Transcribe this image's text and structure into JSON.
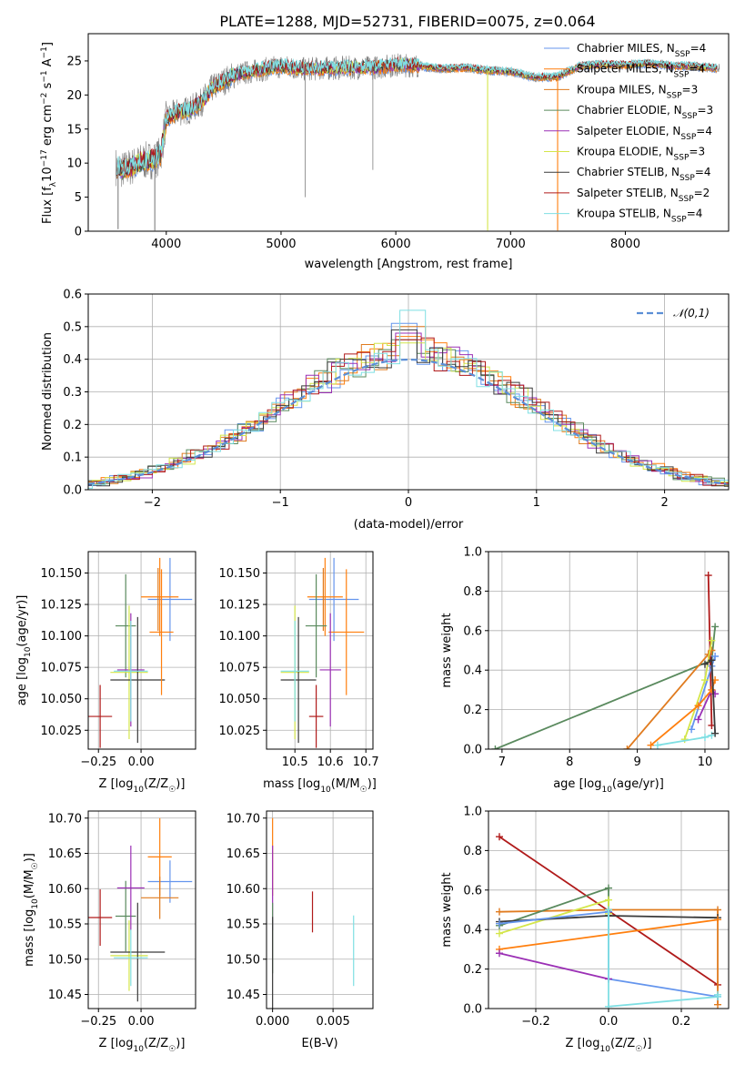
{
  "figure_title": "PLATE=1288, MJD=52731, FIBERID=0075, z=0.064",
  "colors": {
    "Chabrier MILES": "#6495ed",
    "Salpeter MILES": "#ff7f0e",
    "Kroupa MILES": "#e07b1f",
    "Chabrier ELODIE": "#5a8a5e",
    "Salpeter ELODIE": "#9b30b5",
    "Kroupa ELODIE": "#d4e64a",
    "Chabrier STELIB": "#3a3a3a",
    "Salpeter STELIB": "#b01a1a",
    "Kroupa STELIB": "#7fdfe3",
    "observed": "#7f7f7f",
    "normal": "#5b8ed6"
  },
  "chart_data": [
    {
      "id": "spectrum",
      "type": "line",
      "title": "PLATE=1288, MJD=52731, FIBERID=0075, z=0.064",
      "xlabel": "wavelength [Angstrom, rest frame]",
      "ylabel": "Flux [fλ10⁻¹⁷ erg cm⁻² s⁻¹ A⁻¹]",
      "xlim": [
        3320,
        8900
      ],
      "ylim": [
        0,
        29
      ],
      "xticks": [
        4000,
        5000,
        6000,
        7000,
        8000
      ],
      "yticks": [
        0,
        5,
        10,
        15,
        20,
        25
      ],
      "grid": false,
      "legend_position": "top-right",
      "legend": [
        "Chabrier MILES, N_SSP=4",
        "Salpeter MILES, N_SSP=4",
        "Kroupa MILES, N_SSP=3",
        "Chabrier ELODIE, N_SSP=3",
        "Salpeter ELODIE, N_SSP=4",
        "Kroupa ELODIE, N_SSP=3",
        "Chabrier STELIB, N_SSP=4",
        "Salpeter STELIB, N_SSP=2",
        "Kroupa STELIB, N_SSP=4"
      ],
      "continuum": {
        "x": [
          3560,
          3620,
          3700,
          3800,
          3900,
          3950,
          4000,
          4100,
          4200,
          4300,
          4400,
          4600,
          4800,
          5000,
          5200,
          5400,
          5600,
          5800,
          6000,
          6200,
          6400,
          6600,
          6800,
          7000,
          7200,
          7400,
          7600,
          7800,
          8000,
          8200,
          8400,
          8600,
          8800
        ],
        "y": [
          9.5,
          9.0,
          9.5,
          10.3,
          10.5,
          11.2,
          16.5,
          17.5,
          17.8,
          18.8,
          21.0,
          23.0,
          23.6,
          24.2,
          23.8,
          23.9,
          24.0,
          24.0,
          24.4,
          24.3,
          23.8,
          24.0,
          23.6,
          23.4,
          22.6,
          22.6,
          24.2,
          24.5,
          24.4,
          24.6,
          24.3,
          24.2,
          23.9
        ]
      },
      "dips": [
        {
          "x": 3580,
          "y": 0.3
        },
        {
          "x": 3900,
          "y": 0.1
        },
        {
          "x": 6800,
          "y": 0.1
        },
        {
          "x": 7410,
          "y": 0.1
        }
      ],
      "spikes": [
        {
          "x": 5210,
          "y": 5.0
        },
        {
          "x": 5800,
          "y": 9.0
        }
      ]
    },
    {
      "id": "residuals",
      "type": "histogram",
      "xlabel": "(data-model)/error",
      "ylabel": "Normed distribution",
      "xlim": [
        -2.5,
        2.5
      ],
      "ylim": [
        0,
        0.6
      ],
      "xticks": [
        -2,
        -1,
        0,
        1,
        2
      ],
      "yticks": [
        0.0,
        0.1,
        0.2,
        0.3,
        0.4,
        0.5,
        0.6
      ],
      "grid": true,
      "bin_width": 0.1,
      "legend_position": "top-right",
      "legend": [
        "𝒩(0,1)"
      ],
      "peak_values": [
        0.51,
        0.47,
        0.5,
        0.46,
        0.48,
        0.45,
        0.49,
        0.46,
        0.55
      ]
    },
    {
      "id": "age_vs_Z",
      "type": "scatter",
      "xlabel": "Z [log₁₀(Z/Z☉)]",
      "ylabel": "age  [log₁₀(age/yr)]",
      "xlim": [
        -0.31,
        0.32
      ],
      "ylim": [
        10.01,
        10.167
      ],
      "xticks": [
        -0.25,
        0.0
      ],
      "yticks": [
        10.025,
        10.05,
        10.075,
        10.1,
        10.125,
        10.15
      ],
      "grid": true,
      "points": [
        {
          "model": "Chabrier MILES",
          "x": 0.17,
          "y": 10.129,
          "xerr": 0.13,
          "yerr": 0.033
        },
        {
          "model": "Salpeter MILES",
          "x": 0.11,
          "y": 10.131,
          "xerr": 0.11,
          "yerr": 0.031
        },
        {
          "model": "Kroupa MILES",
          "x": 0.1,
          "y": 10.129,
          "xerr": 0.0,
          "yerr": 0.025
        },
        {
          "model": "Salpeter STELIB",
          "x": -0.24,
          "y": 10.036,
          "xerr": 0.07,
          "yerr": 0.025
        },
        {
          "model": "Chabrier ELODIE",
          "x": -0.09,
          "y": 10.108,
          "xerr": 0.06,
          "yerr": 0.041
        },
        {
          "model": "Salpeter ELODIE",
          "x": -0.06,
          "y": 10.073,
          "xerr": 0.08,
          "yerr": 0.045
        },
        {
          "model": "Kroupa ELODIE",
          "x": -0.07,
          "y": 10.071,
          "xerr": 0.11,
          "yerr": 0.053
        },
        {
          "model": "Chabrier STELIB",
          "x": -0.02,
          "y": 10.065,
          "xerr": 0.16,
          "yerr": 0.05
        },
        {
          "model": "Kroupa STELIB",
          "x": -0.06,
          "y": 10.072,
          "xerr": 0.1,
          "yerr": 0.04
        },
        {
          "model": "Salpeter MILES",
          "x": 0.12,
          "y": 10.103,
          "xerr": 0.07,
          "yerr": 0.05
        }
      ]
    },
    {
      "id": "age_vs_mass",
      "type": "scatter",
      "xlabel": "mass [log₁₀(M/M☉)]",
      "ylabel": "",
      "xlim": [
        10.42,
        10.72
      ],
      "ylim": [
        10.01,
        10.167
      ],
      "xticks": [
        10.5,
        10.6,
        10.7
      ],
      "yticks": [
        10.025,
        10.05,
        10.075,
        10.1,
        10.125,
        10.15
      ],
      "grid": true,
      "points": [
        {
          "model": "Chabrier MILES",
          "x": 10.61,
          "y": 10.129,
          "xerr": 0.07,
          "yerr": 0.033
        },
        {
          "model": "Salpeter MILES",
          "x": 10.585,
          "y": 10.131,
          "xerr": 0.05,
          "yerr": 0.031
        },
        {
          "model": "Salpeter MILES",
          "x": 10.645,
          "y": 10.103,
          "xerr": 0.05,
          "yerr": 0.05
        },
        {
          "model": "Kroupa MILES",
          "x": 10.58,
          "y": 10.129,
          "xerr": 0.0,
          "yerr": 0.025
        },
        {
          "model": "Salpeter STELIB",
          "x": 10.56,
          "y": 10.036,
          "xerr": 0.02,
          "yerr": 0.025
        },
        {
          "model": "Chabrier ELODIE",
          "x": 10.56,
          "y": 10.108,
          "xerr": 0.03,
          "yerr": 0.041
        },
        {
          "model": "Salpeter ELODIE",
          "x": 10.6,
          "y": 10.073,
          "xerr": 0.03,
          "yerr": 0.045
        },
        {
          "model": "Kroupa ELODIE",
          "x": 10.5,
          "y": 10.071,
          "xerr": 0.04,
          "yerr": 0.053
        },
        {
          "model": "Chabrier STELIB",
          "x": 10.51,
          "y": 10.065,
          "xerr": 0.05,
          "yerr": 0.05
        },
        {
          "model": "Kroupa STELIB",
          "x": 10.5,
          "y": 10.072,
          "xerr": 0.04,
          "yerr": 0.04
        }
      ]
    },
    {
      "id": "weight_vs_age",
      "type": "line",
      "xlabel": "age  [log₁₀(age/yr)]",
      "ylabel": "mass weight",
      "xlim": [
        6.8,
        10.35
      ],
      "ylim": [
        0,
        1
      ],
      "xticks": [
        7,
        8,
        9,
        10
      ],
      "yticks": [
        0.0,
        0.2,
        0.4,
        0.6,
        0.8,
        1.0
      ],
      "grid": true,
      "series": [
        {
          "model": "Chabrier ELODIE",
          "x": [
            6.9,
            10.1,
            10.15
          ],
          "y": [
            0.0,
            0.45,
            0.62
          ]
        },
        {
          "model": "Kroupa MILES",
          "x": [
            8.85,
            10.05,
            10.1
          ],
          "y": [
            0.0,
            0.48,
            0.5
          ]
        },
        {
          "model": "Salpeter STELIB",
          "x": [
            10.05,
            10.1
          ],
          "y": [
            0.88,
            0.12
          ]
        },
        {
          "model": "Chabrier MILES",
          "x": [
            9.8,
            10.1,
            10.15
          ],
          "y": [
            0.1,
            0.42,
            0.47
          ]
        },
        {
          "model": "Kroupa ELODIE",
          "x": [
            9.7,
            10.0,
            10.1
          ],
          "y": [
            0.05,
            0.35,
            0.55
          ]
        },
        {
          "model": "Salpeter ELODIE",
          "x": [
            9.9,
            10.1,
            10.15
          ],
          "y": [
            0.15,
            0.3,
            0.28
          ]
        },
        {
          "model": "Salpeter MILES",
          "x": [
            9.2,
            9.9,
            10.1,
            10.15
          ],
          "y": [
            0.02,
            0.22,
            0.3,
            0.35
          ]
        },
        {
          "model": "Kroupa STELIB",
          "x": [
            9.3,
            10.0,
            10.1
          ],
          "y": [
            0.02,
            0.06,
            0.07
          ]
        },
        {
          "model": "Chabrier STELIB",
          "x": [
            10.0,
            10.1,
            10.15
          ],
          "y": [
            0.43,
            0.45,
            0.08
          ]
        }
      ]
    },
    {
      "id": "mass_vs_Z",
      "type": "scatter",
      "xlabel": "Z [log₁₀(Z/Z☉)]",
      "ylabel": "mass [log₁₀(M/M☉)]",
      "xlim": [
        -0.31,
        0.32
      ],
      "ylim": [
        10.43,
        10.71
      ],
      "xticks": [
        -0.25,
        0.0
      ],
      "yticks": [
        10.45,
        10.5,
        10.55,
        10.6,
        10.65,
        10.7
      ],
      "grid": true,
      "points": [
        {
          "model": "Chabrier MILES",
          "x": 0.17,
          "y": 10.61,
          "xerr": 0.13,
          "yerr": 0.03
        },
        {
          "model": "Salpeter MILES",
          "x": 0.11,
          "y": 10.645,
          "xerr": 0.07,
          "yerr": 0.055
        },
        {
          "model": "Kroupa MILES",
          "x": 0.11,
          "y": 10.587,
          "xerr": 0.11,
          "yerr": 0.03
        },
        {
          "model": "Salpeter STELIB",
          "x": -0.24,
          "y": 10.559,
          "xerr": 0.07,
          "yerr": 0.04
        },
        {
          "model": "Chabrier ELODIE",
          "x": -0.09,
          "y": 10.561,
          "xerr": 0.06,
          "yerr": 0.05
        },
        {
          "model": "Salpeter ELODIE",
          "x": -0.06,
          "y": 10.601,
          "xerr": 0.08,
          "yerr": 0.06
        },
        {
          "model": "Kroupa ELODIE",
          "x": -0.07,
          "y": 10.505,
          "xerr": 0.11,
          "yerr": 0.05
        },
        {
          "model": "Chabrier STELIB",
          "x": -0.02,
          "y": 10.51,
          "xerr": 0.16,
          "yerr": 0.07
        },
        {
          "model": "Kroupa STELIB",
          "x": -0.06,
          "y": 10.502,
          "xerr": 0.1,
          "yerr": 0.04
        }
      ]
    },
    {
      "id": "mass_vs_ebv",
      "type": "scatter",
      "xlabel": "E(B-V)",
      "ylabel": "",
      "xlim": [
        -0.0005,
        0.0083
      ],
      "ylim": [
        10.43,
        10.71
      ],
      "xticks": [
        0.0,
        0.005
      ],
      "xtick_labels": [
        "0.000",
        "0.005"
      ],
      "yticks": [
        10.45,
        10.5,
        10.55,
        10.6,
        10.65,
        10.7
      ],
      "grid": true,
      "points": [
        {
          "model": "Salpeter MILES",
          "x": 0.0,
          "y": 10.645,
          "xerr": 0,
          "yerr": 0.055
        },
        {
          "model": "Salpeter ELODIE",
          "x": 0.0,
          "y": 10.601,
          "xerr": 0,
          "yerr": 0.06
        },
        {
          "model": "Chabrier ELODIE",
          "x": 0.0,
          "y": 10.53,
          "xerr": 0,
          "yerr": 0.05
        },
        {
          "model": "Chabrier STELIB",
          "x": 0.0,
          "y": 10.49,
          "xerr": 0,
          "yerr": 0.07
        },
        {
          "model": "Salpeter STELIB",
          "x": 0.0033,
          "y": 10.567,
          "xerr": 0,
          "yerr": 0.029
        },
        {
          "model": "Kroupa STELIB",
          "x": 0.0067,
          "y": 10.512,
          "xerr": 0,
          "yerr": 0.05
        }
      ]
    },
    {
      "id": "weight_vs_Z",
      "type": "line",
      "xlabel": "Z [log₁₀(Z/Z☉)]",
      "ylabel": "mass weight",
      "xlim": [
        -0.33,
        0.33
      ],
      "ylim": [
        0,
        1
      ],
      "xticks": [
        -0.2,
        0.0,
        0.2
      ],
      "yticks": [
        0.0,
        0.2,
        0.4,
        0.6,
        0.8,
        1.0
      ],
      "grid": true,
      "series": [
        {
          "model": "Salpeter STELIB",
          "x": [
            -0.3,
            0.3
          ],
          "y": [
            0.87,
            0.12
          ]
        },
        {
          "model": "Kroupa MILES",
          "x": [
            -0.3,
            0.0,
            0.3,
            0.3
          ],
          "y": [
            0.49,
            0.5,
            0.5,
            0.02
          ]
        },
        {
          "model": "Chabrier ELODIE",
          "x": [
            -0.3,
            0.0,
            0.0
          ],
          "y": [
            0.42,
            0.61,
            0.5
          ]
        },
        {
          "model": "Kroupa ELODIE",
          "x": [
            -0.3,
            0.0,
            0.0
          ],
          "y": [
            0.38,
            0.55,
            0.48
          ]
        },
        {
          "model": "Chabrier STELIB",
          "x": [
            -0.3,
            0.0,
            0.3
          ],
          "y": [
            0.44,
            0.47,
            0.46
          ]
        },
        {
          "model": "Chabrier MILES",
          "x": [
            -0.3,
            0.0,
            0.0,
            0.3
          ],
          "y": [
            0.43,
            0.49,
            0.15,
            0.06
          ]
        },
        {
          "model": "Salpeter MILES",
          "x": [
            -0.3,
            0.3
          ],
          "y": [
            0.3,
            0.45
          ]
        },
        {
          "model": "Salpeter ELODIE",
          "x": [
            -0.3,
            0.0
          ],
          "y": [
            0.28,
            0.15
          ]
        },
        {
          "model": "Kroupa STELIB",
          "x": [
            0.0,
            0.0,
            0.3,
            0.3
          ],
          "y": [
            0.5,
            0.01,
            0.06,
            0.07
          ]
        }
      ]
    }
  ]
}
